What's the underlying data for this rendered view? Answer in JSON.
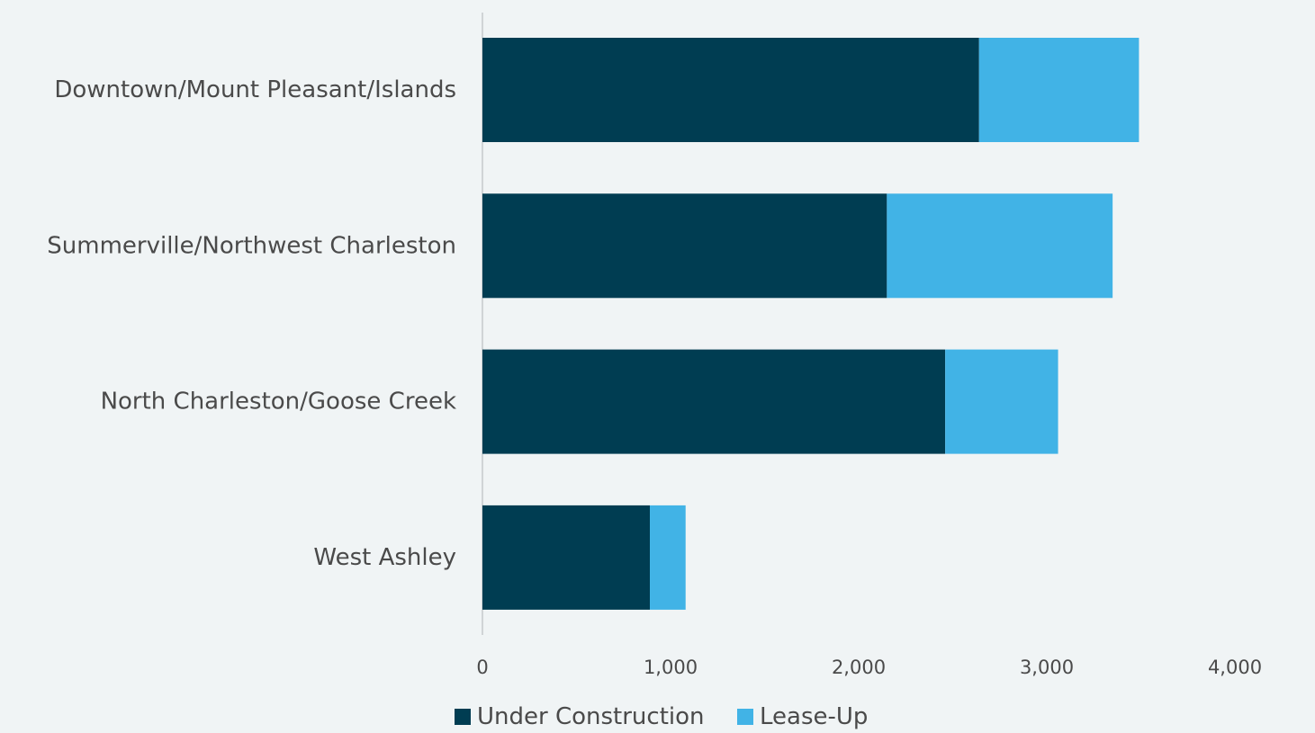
{
  "chart_data": {
    "type": "bar",
    "orientation": "horizontal",
    "stacked": true,
    "categories": [
      "Downtown/Mount Pleasant/Islands",
      "Summerville/Northwest Charleston",
      "North Charleston/Goose Creek",
      "West Ashley"
    ],
    "series": [
      {
        "name": "Under Construction",
        "color": "#003d52",
        "values": [
          2640,
          2150,
          2460,
          890
        ]
      },
      {
        "name": "Lease-Up",
        "color": "#41b3e6",
        "values": [
          850,
          1200,
          600,
          190
        ]
      }
    ],
    "xlim": [
      0,
      4000
    ],
    "xticks": [
      0,
      1000,
      2000,
      3000,
      4000
    ],
    "xtick_labels": [
      "0",
      "1,000",
      "2,000",
      "3,000",
      "4,000"
    ],
    "grid": false,
    "legend_position": "bottom"
  }
}
